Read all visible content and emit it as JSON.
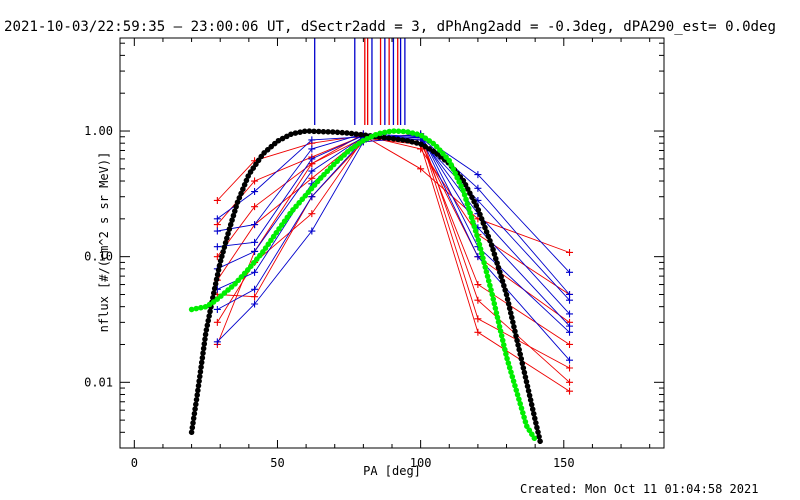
{
  "chart_data": {
    "type": "line",
    "title": "2021-10-03/22:59:35 — 23:00:06 UT, dSectr2add = 3, dPhAng2add = -0.3deg, dPA290_est=  0.0deg",
    "xlabel": "PA [deg]",
    "ylabel": "nflux [#/(cm^2 s sr MeV)]",
    "footer": "Created: Mon Oct 11 01:04:58 2021",
    "xlim": [
      -5,
      185
    ],
    "ylim": [
      0.003,
      5.5
    ],
    "log_y": true,
    "x_ticks": [
      0,
      50,
      100,
      150
    ],
    "x_tick_labels": [
      "0",
      "50",
      "100",
      "150"
    ],
    "y_ticks": [
      0.01,
      0.1,
      1.0
    ],
    "y_tick_labels": [
      "0.01",
      "0.10",
      "1.00"
    ],
    "grid": false,
    "colors": {
      "red": "#ee0000",
      "blue": "#0000cc",
      "black": "#000000",
      "green": "#00ee00"
    },
    "vertical_markers": [
      {
        "x": 63,
        "color": "blue"
      },
      {
        "x": 77,
        "color": "blue"
      },
      {
        "x": 80.5,
        "color": "red"
      },
      {
        "x": 81.5,
        "color": "red"
      },
      {
        "x": 83,
        "color": "blue"
      },
      {
        "x": 86,
        "color": "red"
      },
      {
        "x": 87.5,
        "color": "blue"
      },
      {
        "x": 89,
        "color": "red"
      },
      {
        "x": 90.5,
        "color": "blue"
      },
      {
        "x": 92,
        "color": "red"
      },
      {
        "x": 93,
        "color": "blue"
      },
      {
        "x": 94.5,
        "color": "blue"
      }
    ],
    "series": [
      {
        "color": "red",
        "x": [
          29,
          42,
          62,
          80,
          100,
          120,
          152
        ],
        "y": [
          0.28,
          0.58,
          0.8,
          0.92,
          0.5,
          0.2,
          0.108
        ]
      },
      {
        "color": "red",
        "x": [
          29,
          42,
          62,
          80,
          100,
          120,
          152
        ],
        "y": [
          0.18,
          0.4,
          0.62,
          0.92,
          0.72,
          0.15,
          0.05
        ]
      },
      {
        "color": "red",
        "x": [
          29,
          42,
          62,
          80,
          100,
          120,
          152
        ],
        "y": [
          0.1,
          0.25,
          0.55,
          0.95,
          0.8,
          0.1,
          0.03
        ]
      },
      {
        "color": "red",
        "x": [
          29,
          42,
          62,
          80,
          100,
          120,
          152
        ],
        "y": [
          0.065,
          0.18,
          0.42,
          0.9,
          0.85,
          0.06,
          0.02
        ]
      },
      {
        "color": "red",
        "x": [
          29,
          42,
          62,
          80,
          100,
          120,
          152
        ],
        "y": [
          0.05,
          0.048,
          0.3,
          0.82,
          0.9,
          0.032,
          0.013
        ]
      },
      {
        "color": "red",
        "x": [
          29,
          42,
          62,
          80,
          100,
          120,
          152
        ],
        "y": [
          0.03,
          0.09,
          0.22,
          0.86,
          0.95,
          0.045,
          0.01
        ]
      },
      {
        "color": "red",
        "x": [
          29,
          42,
          62,
          80,
          100,
          120,
          152
        ],
        "y": [
          0.02,
          0.11,
          0.55,
          0.88,
          0.78,
          0.025,
          0.0085
        ]
      },
      {
        "color": "blue",
        "x": [
          29,
          42,
          62,
          80,
          100,
          120,
          152
        ],
        "y": [
          0.2,
          0.33,
          0.85,
          0.9,
          0.92,
          0.45,
          0.075
        ]
      },
      {
        "color": "blue",
        "x": [
          29,
          42,
          62,
          80,
          100,
          120,
          152
        ],
        "y": [
          0.16,
          0.18,
          0.72,
          0.95,
          0.9,
          0.35,
          0.05
        ]
      },
      {
        "color": "blue",
        "x": [
          29,
          42,
          62,
          80,
          100,
          120,
          152
        ],
        "y": [
          0.12,
          0.13,
          0.6,
          0.92,
          0.85,
          0.28,
          0.045
        ]
      },
      {
        "color": "blue",
        "x": [
          29,
          42,
          62,
          80,
          100,
          120,
          152
        ],
        "y": [
          0.08,
          0.11,
          0.48,
          0.9,
          0.88,
          0.22,
          0.035
        ]
      },
      {
        "color": "blue",
        "x": [
          29,
          42,
          62,
          80,
          100,
          120,
          152
        ],
        "y": [
          0.055,
          0.075,
          0.38,
          0.88,
          0.92,
          0.17,
          0.028
        ]
      },
      {
        "color": "blue",
        "x": [
          29,
          42,
          62,
          80,
          100,
          120,
          152
        ],
        "y": [
          0.038,
          0.055,
          0.3,
          0.85,
          0.95,
          0.12,
          0.025
        ]
      },
      {
        "color": "blue",
        "x": [
          29,
          42,
          62,
          80,
          100,
          120,
          152
        ],
        "y": [
          0.021,
          0.042,
          0.16,
          0.82,
          0.9,
          0.1,
          0.015
        ]
      }
    ],
    "dotted_curves": [
      {
        "color": "black",
        "x": [
          20,
          22,
          25,
          28,
          30,
          33,
          36,
          40,
          45,
          50,
          55,
          60,
          65,
          70,
          75,
          80,
          85,
          90,
          95,
          100,
          105,
          110,
          115,
          120,
          125,
          130,
          135,
          138,
          140,
          142
        ],
        "y": [
          0.004,
          0.008,
          0.025,
          0.055,
          0.09,
          0.16,
          0.27,
          0.45,
          0.66,
          0.83,
          0.95,
          1.0,
          0.99,
          0.98,
          0.96,
          0.93,
          0.9,
          0.87,
          0.84,
          0.79,
          0.68,
          0.55,
          0.4,
          0.24,
          0.12,
          0.05,
          0.016,
          0.008,
          0.005,
          0.0032
        ]
      },
      {
        "color": "green",
        "x": [
          20,
          25,
          28,
          30,
          35,
          40,
          45,
          50,
          55,
          60,
          65,
          70,
          75,
          80,
          85,
          90,
          95,
          100,
          105,
          110,
          115,
          120,
          125,
          130,
          135,
          137,
          140
        ],
        "y": [
          0.038,
          0.04,
          0.044,
          0.048,
          0.06,
          0.08,
          0.11,
          0.16,
          0.23,
          0.31,
          0.42,
          0.55,
          0.7,
          0.84,
          0.95,
          1.0,
          0.99,
          0.93,
          0.78,
          0.58,
          0.33,
          0.14,
          0.05,
          0.016,
          0.0065,
          0.0045,
          0.0035
        ]
      }
    ]
  }
}
